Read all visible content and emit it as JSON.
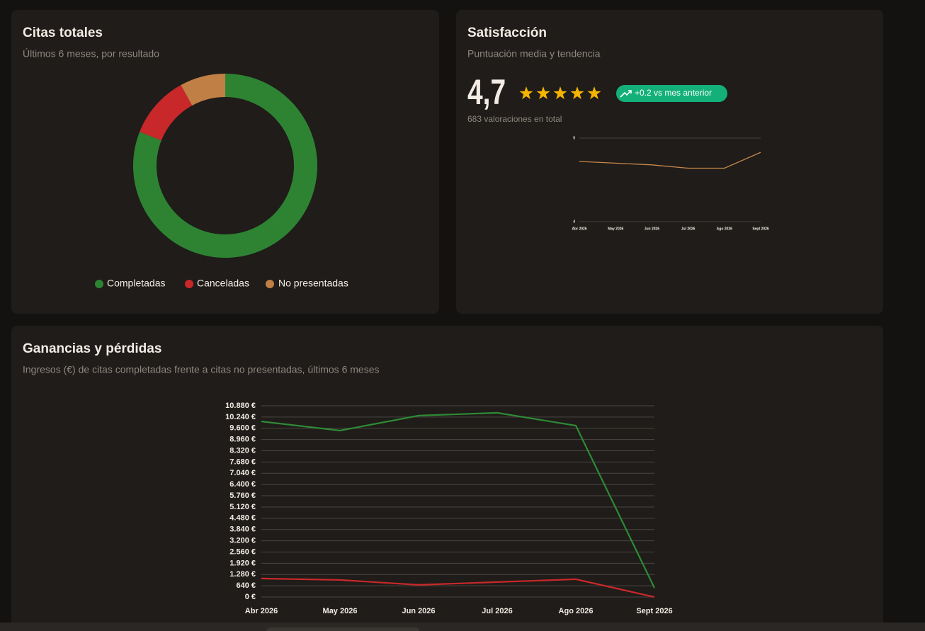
{
  "chart_data": [
    {
      "type": "pie",
      "title": "Citas totales",
      "subtitle": "Últimos 6 meses, por resultado",
      "categories": [
        "Completadas",
        "Canceladas",
        "No presentadas"
      ],
      "values": [
        81,
        11,
        8
      ],
      "colors": [
        "#2e8333",
        "#c8282a",
        "#c07f45"
      ]
    },
    {
      "type": "line",
      "title": "Satisfacción",
      "subtitle": "Puntuación media y tendencia",
      "headline": "4,7",
      "badge": "+0.2 vs mes anterior",
      "note": "683 valoraciones en total",
      "categories": [
        "Abr 2026",
        "May 2026",
        "Jun 2026",
        "Jul 2026",
        "Ago 2026",
        "Sept 2026"
      ],
      "series": [
        {
          "color": "#c8874a",
          "values": [
            4.72,
            4.7,
            4.68,
            4.64,
            4.64,
            4.83
          ]
        }
      ],
      "ylim": [
        4,
        5
      ],
      "yticks": [
        4,
        5
      ],
      "grid": true
    },
    {
      "type": "line",
      "title": "Ganancias y pérdidas",
      "subtitle": "Ingresos (€) de citas completadas frente a citas no presentadas, últimos 6 meses",
      "categories": [
        "Abr 2026",
        "May 2026",
        "Jun 2026",
        "Jul 2026",
        "Ago 2026",
        "Sept 2026"
      ],
      "series": [
        {
          "color": "#2e8a36",
          "values": [
            9990,
            9470,
            10320,
            10480,
            9750,
            520
          ]
        },
        {
          "color": "#c8282a",
          "values": [
            1050,
            970,
            690,
            850,
            1010,
            0
          ]
        }
      ],
      "ylim": [
        0,
        10880
      ],
      "yticks": [
        {
          "value": 0,
          "label": "0 €"
        },
        {
          "value": 640,
          "label": "640 €"
        },
        {
          "value": 1280,
          "label": "1.280 €"
        },
        {
          "value": 1920,
          "label": "1.920 €"
        },
        {
          "value": 2560,
          "label": "2.560 €"
        },
        {
          "value": 3200,
          "label": "3.200 €"
        },
        {
          "value": 3840,
          "label": "3.840 €"
        },
        {
          "value": 4480,
          "label": "4.480 €"
        },
        {
          "value": 5120,
          "label": "5.120 €"
        },
        {
          "value": 5760,
          "label": "5.760 €"
        },
        {
          "value": 6400,
          "label": "6.400 €"
        },
        {
          "value": 7040,
          "label": "7.040 €"
        },
        {
          "value": 7680,
          "label": "7.680 €"
        },
        {
          "value": 8320,
          "label": "8.320 €"
        },
        {
          "value": 8960,
          "label": "8.960 €"
        },
        {
          "value": 9600,
          "label": "9.600 €"
        },
        {
          "value": 10240,
          "label": "10.240 €"
        },
        {
          "value": 10880,
          "label": "10.880 €"
        }
      ],
      "grid": true
    }
  ]
}
